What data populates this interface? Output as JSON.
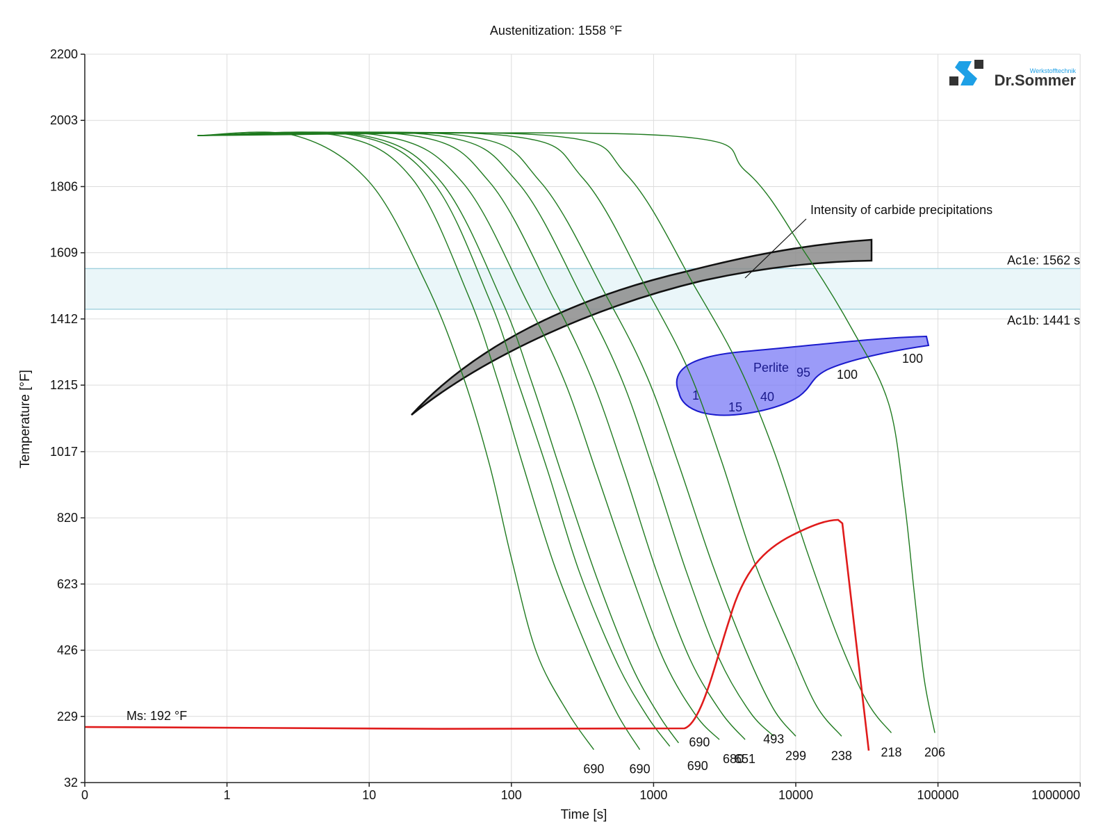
{
  "chart_data": {
    "type": "line",
    "title": "Austenitization: 1558 °F",
    "xlabel": "Time [s]",
    "ylabel": "Temperature [°F]",
    "x_scale": "log",
    "x_tick_labels": [
      "0",
      "1",
      "10",
      "100",
      "1000",
      "10000",
      "100000",
      "1000000"
    ],
    "y_ticks": [
      2200,
      2003,
      1806,
      1609,
      1412,
      1215,
      1017,
      820,
      623,
      426,
      229,
      32
    ],
    "ylim": [
      32,
      2200
    ],
    "grid": true,
    "logo": {
      "text_small": "Werkstofftechnik",
      "text_main": "Dr.Sommer",
      "accent": "#1ea0e6",
      "dark": "#333333"
    },
    "colors": {
      "cooling": "#1f7a1f",
      "martensite": "#e01b1b",
      "carbide": "#8c8c8c",
      "pearlite": "#7a7af5",
      "pearlite_edge": "#1a1acc",
      "ac1_band": "#eaf6f9",
      "ac1_line": "#9fd0de"
    },
    "ac1": {
      "ac1e_label": "Ac1e: 1562 s",
      "ac1e_temp": 1562,
      "ac1b_label": "Ac1b: 1441 s",
      "ac1b_temp": 1441
    },
    "ms": {
      "label": "Ms: 192 °F",
      "temp": 192
    },
    "carbide_label": "Intensity of carbide precipitations",
    "pearlite_label": "Perlite",
    "pearlite_percent_labels": [
      "1",
      "15",
      "40",
      "95",
      "100",
      "100"
    ],
    "series": [
      {
        "hardness": "690",
        "x": [
          0.62,
          3,
          10,
          25,
          45,
          70,
          100,
          150,
          250,
          380
        ],
        "y": [
          1958,
          1958,
          1820,
          1520,
          1250,
          980,
          700,
          420,
          240,
          130
        ]
      },
      {
        "hardness": "690",
        "x": [
          0.62,
          6,
          20,
          50,
          80,
          120,
          200,
          350,
          550,
          800
        ],
        "y": [
          1958,
          1958,
          1830,
          1480,
          1230,
          980,
          680,
          420,
          240,
          130
        ]
      },
      {
        "hardness": "690",
        "x": [
          0.62,
          8,
          28,
          70,
          110,
          180,
          300,
          550,
          900,
          1300
        ],
        "y": [
          1958,
          1958,
          1820,
          1470,
          1230,
          960,
          660,
          390,
          230,
          140
        ]
      },
      {
        "hardness": "690",
        "x": [
          0.62,
          9,
          32,
          85,
          140,
          230,
          400,
          700,
          1100,
          1500
        ],
        "y": [
          1958,
          1958,
          1820,
          1470,
          1220,
          940,
          640,
          380,
          230,
          150
        ]
      },
      {
        "hardness": "680",
        "x": [
          0.62,
          12,
          45,
          130,
          240,
          400,
          700,
          1200,
          2000,
          2900
        ],
        "y": [
          1958,
          1958,
          1820,
          1460,
          1220,
          950,
          650,
          390,
          230,
          160
        ]
      },
      {
        "hardness": "651",
        "x": [
          0.62,
          20,
          70,
          200,
          370,
          620,
          1050,
          1800,
          3000,
          4400
        ],
        "y": [
          1958,
          1958,
          1820,
          1470,
          1230,
          960,
          660,
          400,
          240,
          160
        ]
      },
      {
        "hardness": "493",
        "x": [
          0.62,
          30,
          110,
          320,
          600,
          1000,
          1700,
          2900,
          4800,
          7000
        ],
        "y": [
          1958,
          1958,
          1820,
          1470,
          1230,
          960,
          660,
          400,
          240,
          170
        ]
      },
      {
        "hardness": "299",
        "x": [
          0.62,
          45,
          160,
          480,
          900,
          1500,
          2600,
          4500,
          7000,
          10000
        ],
        "y": [
          1958,
          1958,
          1820,
          1470,
          1240,
          980,
          680,
          420,
          250,
          170
        ]
      },
      {
        "hardness": "238",
        "x": [
          0.62,
          90,
          320,
          950,
          1800,
          3000,
          5000,
          9000,
          14000,
          21000
        ],
        "y": [
          1958,
          1958,
          1830,
          1480,
          1250,
          990,
          700,
          440,
          260,
          170
        ]
      },
      {
        "hardness": "218",
        "x": [
          0.62,
          180,
          650,
          2000,
          4000,
          7000,
          12000,
          20000,
          32000,
          47000
        ],
        "y": [
          1958,
          1958,
          1840,
          1500,
          1270,
          1020,
          720,
          460,
          270,
          180
        ]
      },
      {
        "hardness": "206",
        "x": [
          0.62,
          1200,
          4500,
          12000,
          25000,
          45000,
          58000,
          68000,
          80000,
          95000
        ],
        "y": [
          1958,
          1958,
          1850,
          1600,
          1380,
          1160,
          870,
          600,
          340,
          180
        ]
      }
    ]
  }
}
